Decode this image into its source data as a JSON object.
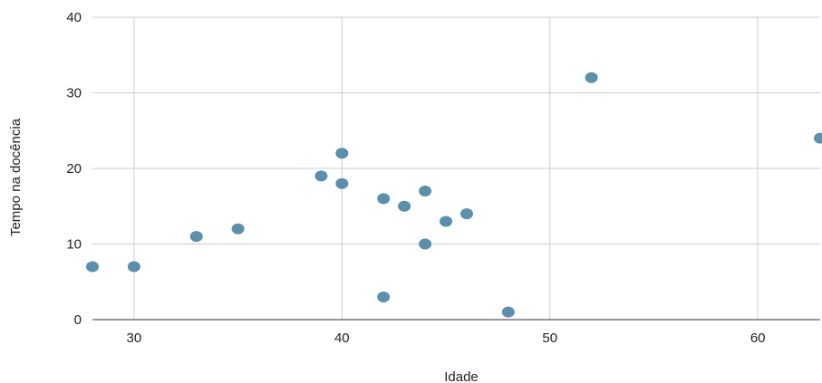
{
  "chart_data": {
    "type": "scatter",
    "title": "",
    "xlabel": "Idade",
    "ylabel": "Tempo na docência",
    "xlim": [
      28,
      63
    ],
    "ylim": [
      0,
      40
    ],
    "xticks": [
      "30",
      "40",
      "50",
      "60"
    ],
    "yticks": [
      "0",
      "10",
      "20",
      "30",
      "40"
    ],
    "grid": true,
    "legend": "none",
    "series": [
      {
        "color": "#5b8fab",
        "points": [
          {
            "x": 28,
            "y": 7
          },
          {
            "x": 30,
            "y": 7
          },
          {
            "x": 33,
            "y": 11
          },
          {
            "x": 35,
            "y": 12
          },
          {
            "x": 39,
            "y": 19
          },
          {
            "x": 40,
            "y": 22
          },
          {
            "x": 40,
            "y": 18
          },
          {
            "x": 42,
            "y": 16
          },
          {
            "x": 42,
            "y": 3
          },
          {
            "x": 43,
            "y": 15
          },
          {
            "x": 44,
            "y": 17
          },
          {
            "x": 44,
            "y": 10
          },
          {
            "x": 45,
            "y": 13
          },
          {
            "x": 46,
            "y": 14
          },
          {
            "x": 48,
            "y": 1
          },
          {
            "x": 52,
            "y": 32
          },
          {
            "x": 63,
            "y": 24
          }
        ]
      }
    ]
  },
  "colors": {
    "grid": "#cccccc",
    "axis": "#333333",
    "point": "#5b8fab"
  }
}
